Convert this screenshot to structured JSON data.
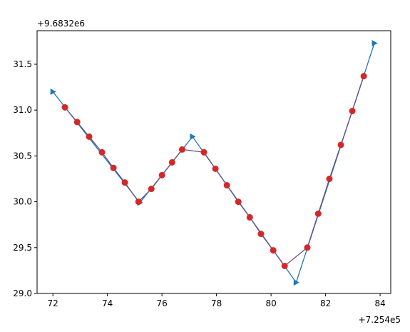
{
  "chart_data": {
    "type": "line",
    "x_offset": "+7.254e5",
    "y_offset": "+9.6832e6",
    "xlim": [
      71.42,
      84.39
    ],
    "ylim": [
      29.0,
      31.866
    ],
    "xticks": [
      72,
      74,
      76,
      78,
      80,
      82,
      84
    ],
    "yticks": [
      {
        "value": 29,
        "label": "29.0"
      },
      29.5,
      {
        "value": 30,
        "label": "30.0"
      },
      30.5,
      {
        "value": 31,
        "label": "31.0"
      },
      31.5
    ],
    "series": [
      {
        "color": "#1f77b4",
        "marker": "triangle-right",
        "x": [
          72.0,
          75.19,
          77.12,
          80.92,
          83.79
        ],
        "values": [
          31.2,
          29.99,
          30.71,
          29.12,
          31.73
        ]
      },
      {
        "color": "#d62728",
        "line_color": "#6b4f86",
        "marker": "circle",
        "x": [
          72.44,
          72.89,
          73.33,
          73.8,
          74.22,
          74.64,
          75.14,
          75.61,
          76.0,
          76.37,
          76.74,
          77.54,
          77.96,
          78.38,
          78.8,
          79.22,
          79.63,
          80.08,
          80.5,
          81.33,
          81.73,
          82.14,
          82.56,
          82.98,
          83.4
        ],
        "values": [
          31.03,
          30.87,
          30.71,
          30.54,
          30.37,
          30.21,
          30.0,
          30.14,
          30.29,
          30.43,
          30.57,
          30.54,
          30.36,
          30.18,
          30.0,
          29.83,
          29.65,
          29.47,
          29.3,
          29.5,
          29.87,
          30.25,
          30.62,
          30.99,
          31.37
        ]
      }
    ]
  }
}
